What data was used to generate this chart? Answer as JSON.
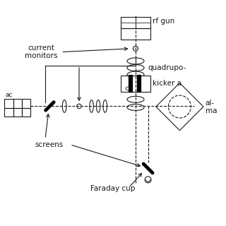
{
  "bg_color": "#ffffff",
  "line_color": "#1a1a1a",
  "figsize": [
    3.2,
    3.2
  ],
  "dpi": 100,
  "labels": {
    "rf_gun": "rf gun",
    "quadrupole": "quadrupo-",
    "kicker": "kicker a",
    "linac": "ac",
    "current_monitors": "current\nmonitors",
    "screens": "screens",
    "faraday_cup": "Faraday cup",
    "al": "al-",
    "ma": "ma"
  },
  "xlim": [
    0,
    10
  ],
  "ylim": [
    0,
    10
  ]
}
